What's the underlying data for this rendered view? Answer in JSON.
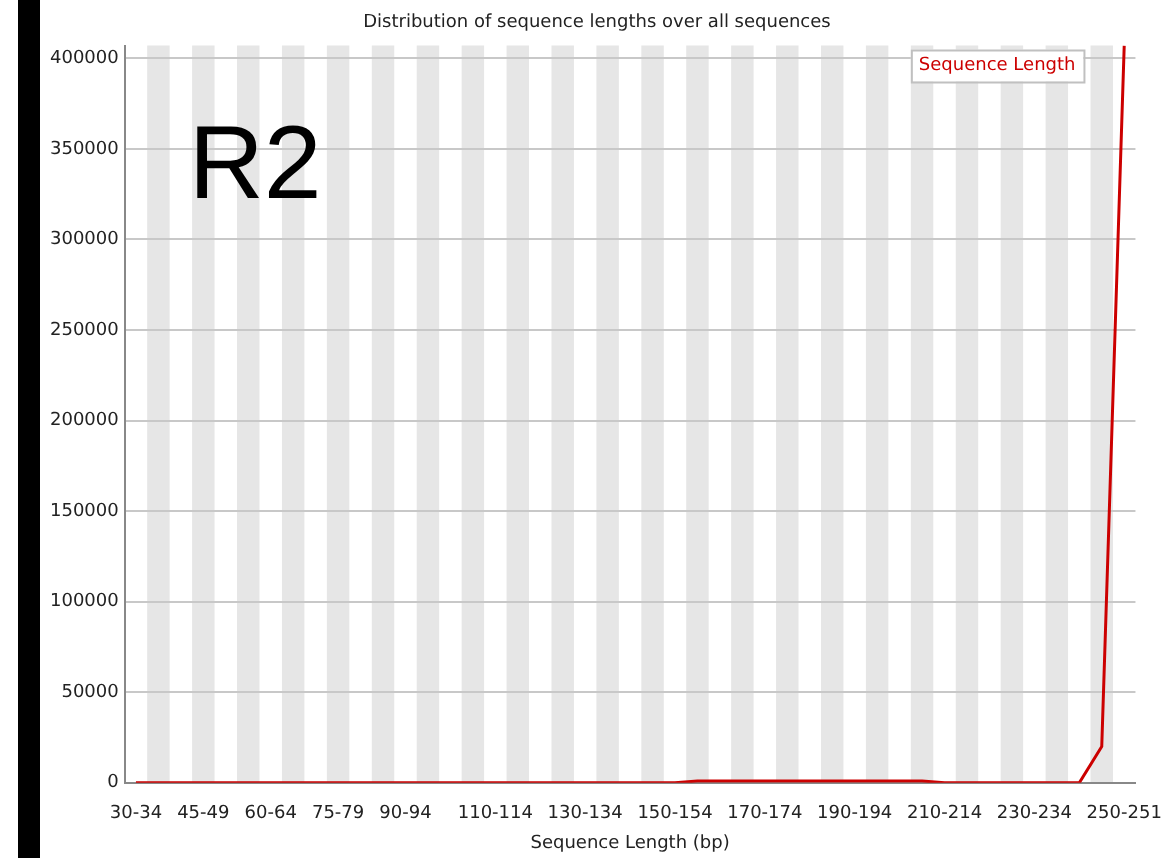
{
  "chart_data": {
    "type": "line",
    "title": "Distribution of sequence lengths over all sequences",
    "xlabel": "Sequence Length (bp)",
    "annotations": [
      "R2"
    ],
    "categories": [
      "30-34",
      null,
      null,
      "45-49",
      null,
      null,
      "60-64",
      null,
      null,
      "75-79",
      null,
      null,
      "90-94",
      null,
      null,
      null,
      "110-114",
      null,
      null,
      null,
      "130-134",
      null,
      null,
      null,
      "150-154",
      null,
      null,
      null,
      "170-174",
      null,
      null,
      null,
      "190-194",
      null,
      null,
      null,
      "210-214",
      null,
      null,
      null,
      "230-234",
      null,
      null,
      null,
      "250-251"
    ],
    "series": [
      {
        "name": "Sequence Length",
        "color": "#cc0000",
        "values": [
          0,
          0,
          0,
          0,
          0,
          0,
          0,
          0,
          0,
          0,
          0,
          0,
          0,
          0,
          0,
          0,
          0,
          0,
          0,
          0,
          0,
          0,
          0,
          0,
          0,
          1000,
          1000,
          1000,
          1000,
          1000,
          1000,
          1000,
          1000,
          1000,
          1000,
          1000,
          0,
          0,
          0,
          0,
          0,
          0,
          0,
          20000,
          407000
        ]
      }
    ],
    "ylim": [
      0,
      407000
    ],
    "yticks": [
      0,
      50000,
      100000,
      150000,
      200000,
      250000,
      300000,
      350000,
      400000
    ],
    "grid": true,
    "legend": "top right",
    "marker": "none"
  }
}
